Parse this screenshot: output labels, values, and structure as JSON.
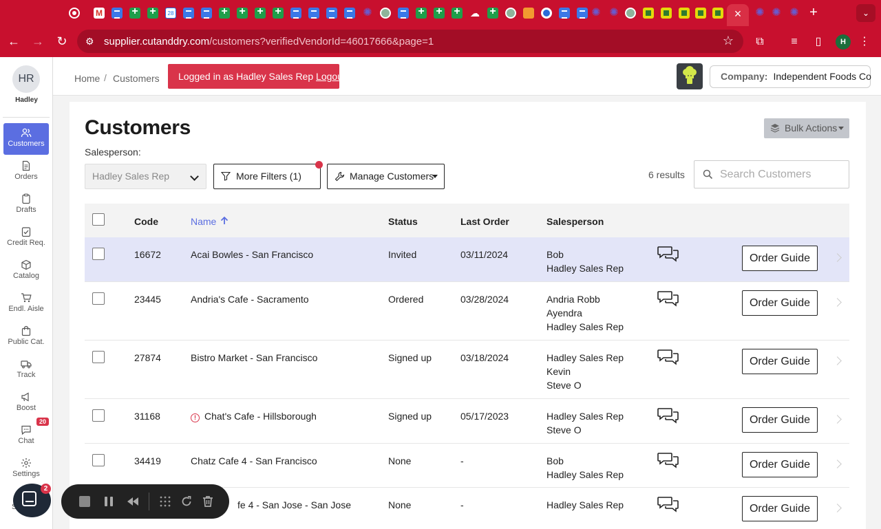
{
  "browser": {
    "url_host": "supplier.cutanddry.com",
    "url_rest": "/customers?verifiedVendorId=46017666&page=1",
    "profile_initial": "H"
  },
  "sidebar": {
    "avatar_initials": "HR",
    "user_name": "Hadley",
    "items": [
      {
        "label": "Customers",
        "icon": "users-icon",
        "active": true
      },
      {
        "label": "Orders",
        "icon": "document-icon"
      },
      {
        "label": "Drafts",
        "icon": "clipboard-icon"
      },
      {
        "label": "Credit Req.",
        "icon": "check-clipboard-icon"
      },
      {
        "label": "Catalog",
        "icon": "box-icon"
      },
      {
        "label": "Endl. Aisle",
        "icon": "cart-icon"
      },
      {
        "label": "Public Cat.",
        "icon": "bag-icon"
      },
      {
        "label": "Track",
        "icon": "truck-icon"
      },
      {
        "label": "Boost",
        "icon": "megaphone-icon"
      },
      {
        "label": "Chat",
        "icon": "chat-icon",
        "badge": "20"
      },
      {
        "label": "Settings",
        "icon": "gear-icon"
      }
    ],
    "partial_label": "S"
  },
  "header": {
    "breadcrumb_home": "Home",
    "breadcrumb_sep": "/",
    "breadcrumb_current": "Customers",
    "login_text": "Logged in as Hadley Sales Rep ",
    "logout_link": "Logout",
    "company_label": "Company:",
    "company_name": "Independent Foods Co"
  },
  "page": {
    "title": "Customers",
    "bulk_actions": "Bulk Actions",
    "salesperson_label": "Salesperson:",
    "salesperson_value": "Hadley Sales Rep",
    "more_filters": "More Filters",
    "more_filters_count": "(1)",
    "manage_customers": "Manage Customers",
    "results": "6 results",
    "search_placeholder": "Search Customers"
  },
  "table": {
    "headers": {
      "code": "Code",
      "name": "Name",
      "status": "Status",
      "last_order": "Last Order",
      "salesperson": "Salesperson"
    },
    "order_guide_label": "Order Guide",
    "rows": [
      {
        "code": "16672",
        "name": "Acai Bowles - San Francisco",
        "status": "Invited",
        "last_order": "03/11/2024",
        "salespeople": [
          "Bob",
          "Hadley Sales Rep"
        ],
        "highlight": true
      },
      {
        "code": "23445",
        "name": "Andria's Cafe - Sacramento",
        "status": "Ordered",
        "last_order": "03/28/2024",
        "salespeople": [
          "Andria Robb",
          "Ayendra",
          "Hadley Sales Rep"
        ]
      },
      {
        "code": "27874",
        "name": "Bistro Market - San Francisco",
        "status": "Signed up",
        "last_order": "03/18/2024",
        "salespeople": [
          "Hadley Sales Rep",
          "Kevin",
          "Steve O"
        ]
      },
      {
        "code": "31168",
        "name": "Chat's Cafe - Hillsborough",
        "status": "Signed up",
        "last_order": "05/17/2023",
        "salespeople": [
          "Hadley Sales Rep",
          "Steve O"
        ],
        "warning": true
      },
      {
        "code": "34419",
        "name": "Chatz Cafe 4 - San Francisco",
        "status": "None",
        "last_order": "-",
        "salespeople": [
          "Bob",
          "Hadley Sales Rep"
        ]
      },
      {
        "code": "",
        "name": "fe 4 - San Jose - San Jose",
        "status": "None",
        "last_order": "-",
        "salespeople": [
          "Hadley Sales Rep"
        ]
      }
    ]
  },
  "widgets": {
    "intercom_badge": "2"
  }
}
